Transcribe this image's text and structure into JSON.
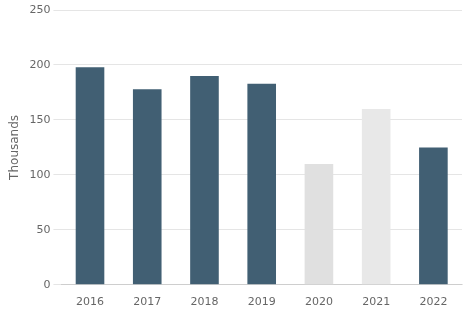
{
  "chart_data": {
    "type": "bar",
    "categories": [
      "2016",
      "2017",
      "2018",
      "2019",
      "2020",
      "2021",
      "2022"
    ],
    "values": [
      198,
      178,
      190,
      183,
      110,
      160,
      125
    ],
    "colors": [
      "#415f73",
      "#415f73",
      "#415f73",
      "#415f73",
      "#e0e0e0",
      "#e8e8e8",
      "#415f73"
    ],
    "ylabel": "Thousands",
    "ylim": [
      0,
      250
    ],
    "yticks": [
      0,
      50,
      100,
      150,
      200,
      250
    ],
    "grid": true
  }
}
